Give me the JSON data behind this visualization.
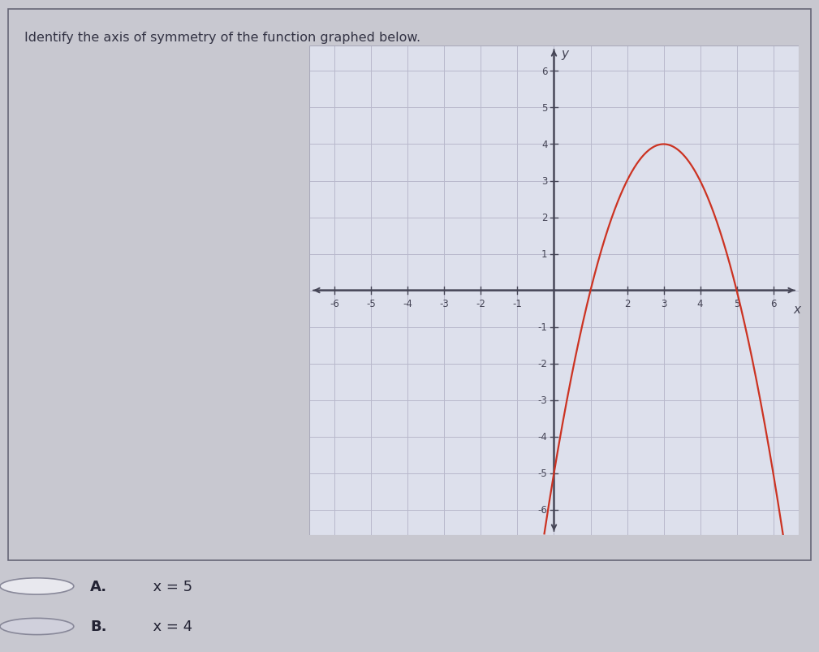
{
  "title": "Identify the axis of symmetry of the function graphed below.",
  "title_fontsize": 11.5,
  "title_color": "#333344",
  "bg_color": "#c8c8d0",
  "panel_color": "#dcdce4",
  "panel_border_color": "#666677",
  "plot_bg_color": "#dde0ec",
  "grid_color": "#b8b8cc",
  "axis_color": "#444455",
  "curve_color": "#cc3322",
  "curve_linewidth": 1.6,
  "vertex_x": 3,
  "vertex_y": 4,
  "a": -1,
  "xlim": [
    -6.7,
    6.7
  ],
  "ylim": [
    -6.7,
    6.7
  ],
  "xticks": [
    -6,
    -5,
    -4,
    -3,
    -2,
    -1,
    2,
    3,
    4,
    5,
    6
  ],
  "yticks": [
    -6,
    -5,
    -4,
    -3,
    -2,
    -1,
    1,
    2,
    3,
    4,
    5,
    6
  ],
  "xlabel": "x",
  "ylabel": "y",
  "answer_A": "  x = 5",
  "answer_B": "  x = 4",
  "answer_A_label": "A.",
  "answer_B_label": "B.",
  "answer_fontsize": 13,
  "radio_color_A": "#e8e8ee",
  "radio_color_B": "#d0d0dc",
  "radio_edge_color": "#888899"
}
